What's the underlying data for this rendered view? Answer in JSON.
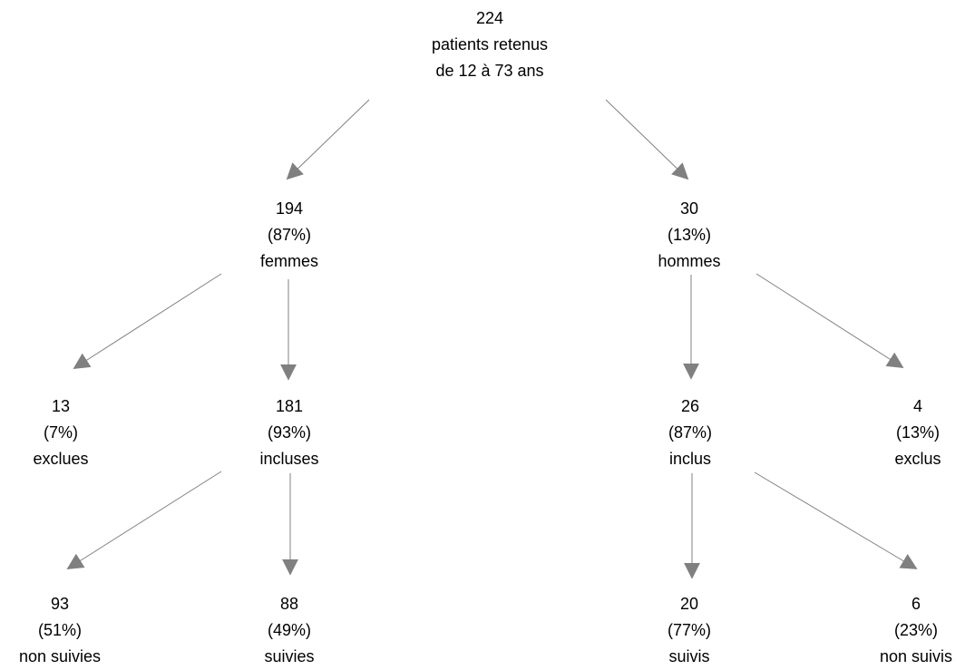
{
  "colors": {
    "arrow": "#808080",
    "text": "#000000",
    "background": "#ffffff"
  },
  "nodes": {
    "root": {
      "line1": "224",
      "line2": "patients retenus",
      "line3": "de 12 à 73 ans"
    },
    "femmes": {
      "line1": "194",
      "line2": "(87%)",
      "line3": "femmes"
    },
    "hommes": {
      "line1": "30",
      "line2": "(13%)",
      "line3": "hommes"
    },
    "exclues": {
      "line1": "13",
      "line2": "(7%)",
      "line3": "exclues"
    },
    "incluses": {
      "line1": "181",
      "line2": "(93%)",
      "line3": "incluses"
    },
    "inclus": {
      "line1": "26",
      "line2": "(87%)",
      "line3": "inclus"
    },
    "exclus": {
      "line1": "4",
      "line2": "(13%)",
      "line3": "exclus"
    },
    "non_suivies": {
      "line1": "93",
      "line2": "(51%)",
      "line3": "non suivies"
    },
    "suivies": {
      "line1": "88",
      "line2": "(49%)",
      "line3": "suivies"
    },
    "suivis": {
      "line1": "20",
      "line2": "(77%)",
      "line3": "suivis"
    },
    "non_suivis": {
      "line1": "6",
      "line2": "(23%)",
      "line3": "non suivis"
    }
  }
}
